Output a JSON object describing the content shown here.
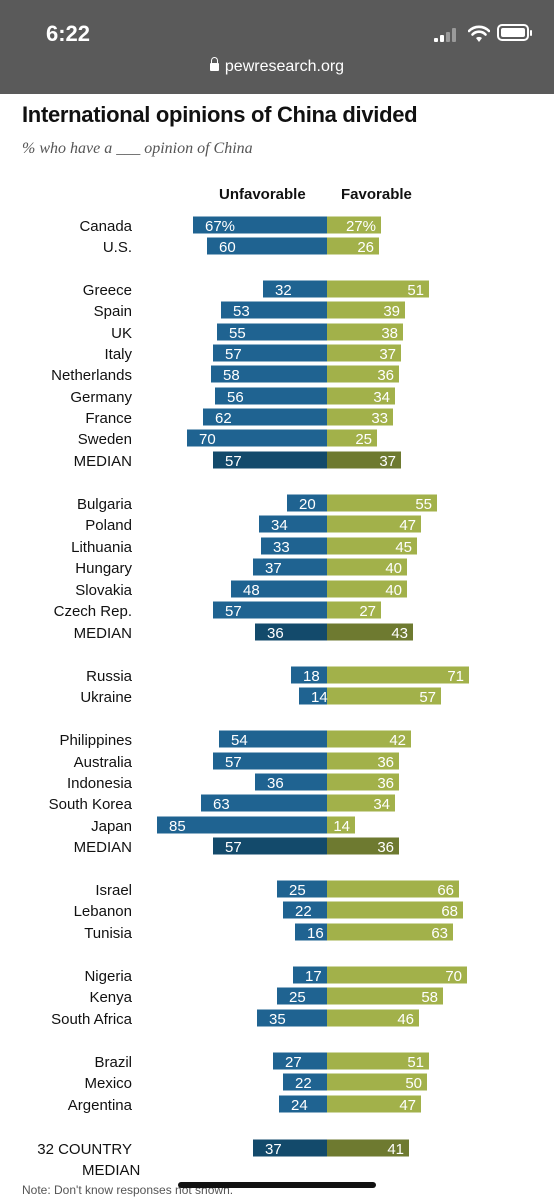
{
  "status_bar": {
    "time": "6:22",
    "url": "pewresearch.org"
  },
  "title": "International opinions of China divided",
  "subtitle": "% who have a ___ opinion of China",
  "columns": {
    "unfavorable": "Unfavorable",
    "favorable": "Favorable"
  },
  "note": "Note: Don't know responses not shown.",
  "colors": {
    "unfav": "#1f6391",
    "fav": "#a2b14a",
    "unfav_median": "#134a6b",
    "fav_median": "#6e7a30"
  },
  "chart_data": {
    "type": "bar",
    "title": "International opinions of China divided",
    "subtitle": "% who have a ___ opinion of China",
    "series": [
      {
        "name": "Unfavorable",
        "values": [
          67,
          60,
          32,
          53,
          55,
          57,
          58,
          56,
          62,
          70,
          57,
          20,
          34,
          33,
          37,
          48,
          57,
          36,
          18,
          14,
          54,
          57,
          36,
          63,
          85,
          57,
          25,
          22,
          16,
          17,
          25,
          35,
          27,
          22,
          24,
          37
        ]
      },
      {
        "name": "Favorable",
        "values": [
          27,
          26,
          51,
          39,
          38,
          37,
          36,
          34,
          33,
          25,
          37,
          55,
          47,
          45,
          40,
          40,
          27,
          43,
          71,
          57,
          42,
          36,
          36,
          34,
          14,
          36,
          66,
          68,
          63,
          70,
          58,
          46,
          51,
          50,
          47,
          41
        ]
      }
    ],
    "rows": [
      {
        "label": "Canada",
        "unfav": 67,
        "fav": 27,
        "pct": true
      },
      {
        "label": "U.S.",
        "unfav": 60,
        "fav": 26
      },
      {
        "label": "Greece",
        "unfav": 32,
        "fav": 51
      },
      {
        "label": "Spain",
        "unfav": 53,
        "fav": 39
      },
      {
        "label": "UK",
        "unfav": 55,
        "fav": 38
      },
      {
        "label": "Italy",
        "unfav": 57,
        "fav": 37
      },
      {
        "label": "Netherlands",
        "unfav": 58,
        "fav": 36
      },
      {
        "label": "Germany",
        "unfav": 56,
        "fav": 34
      },
      {
        "label": "France",
        "unfav": 62,
        "fav": 33
      },
      {
        "label": "Sweden",
        "unfav": 70,
        "fav": 25
      },
      {
        "label": "MEDIAN",
        "unfav": 57,
        "fav": 37,
        "median": true
      },
      {
        "label": "Bulgaria",
        "unfav": 20,
        "fav": 55
      },
      {
        "label": "Poland",
        "unfav": 34,
        "fav": 47
      },
      {
        "label": "Lithuania",
        "unfav": 33,
        "fav": 45
      },
      {
        "label": "Hungary",
        "unfav": 37,
        "fav": 40
      },
      {
        "label": "Slovakia",
        "unfav": 48,
        "fav": 40
      },
      {
        "label": "Czech Rep.",
        "unfav": 57,
        "fav": 27
      },
      {
        "label": "MEDIAN",
        "unfav": 36,
        "fav": 43,
        "median": true
      },
      {
        "label": "Russia",
        "unfav": 18,
        "fav": 71
      },
      {
        "label": "Ukraine",
        "unfav": 14,
        "fav": 57
      },
      {
        "label": "Philippines",
        "unfav": 54,
        "fav": 42
      },
      {
        "label": "Australia",
        "unfav": 57,
        "fav": 36
      },
      {
        "label": "Indonesia",
        "unfav": 36,
        "fav": 36
      },
      {
        "label": "South Korea",
        "unfav": 63,
        "fav": 34
      },
      {
        "label": "Japan",
        "unfav": 85,
        "fav": 14
      },
      {
        "label": "MEDIAN",
        "unfav": 57,
        "fav": 36,
        "median": true
      },
      {
        "label": "Israel",
        "unfav": 25,
        "fav": 66
      },
      {
        "label": "Lebanon",
        "unfav": 22,
        "fav": 68
      },
      {
        "label": "Tunisia",
        "unfav": 16,
        "fav": 63
      },
      {
        "label": "Nigeria",
        "unfav": 17,
        "fav": 70
      },
      {
        "label": "Kenya",
        "unfav": 25,
        "fav": 58
      },
      {
        "label": "South Africa",
        "unfav": 35,
        "fav": 46
      },
      {
        "label": "Brazil",
        "unfav": 27,
        "fav": 51
      },
      {
        "label": "Mexico",
        "unfav": 22,
        "fav": 50
      },
      {
        "label": "Argentina",
        "unfav": 24,
        "fav": 47
      },
      {
        "label": "32 COUNTRY",
        "label2": "MEDIAN",
        "unfav": 37,
        "fav": 41,
        "median": true
      }
    ]
  }
}
